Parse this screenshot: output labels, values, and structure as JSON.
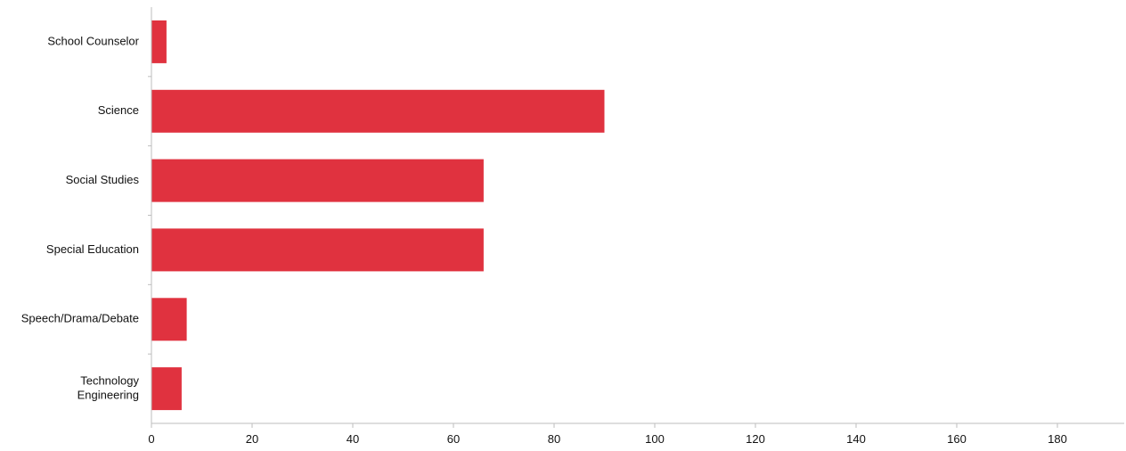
{
  "chart_data": {
    "type": "bar",
    "orientation": "horizontal",
    "categories": [
      [
        "School Counselor"
      ],
      [
        "Science"
      ],
      [
        "Social Studies"
      ],
      [
        "Special Education"
      ],
      [
        "Speech/Drama/Debate"
      ],
      [
        "Technology",
        "Engineering"
      ]
    ],
    "values": [
      3,
      90,
      66,
      66,
      7,
      6
    ],
    "xlim": [
      0,
      190
    ],
    "x_ticks": [
      0,
      20,
      40,
      60,
      80,
      100,
      120,
      140,
      160,
      180
    ],
    "grid": false,
    "bar_color": "#e0323f"
  }
}
